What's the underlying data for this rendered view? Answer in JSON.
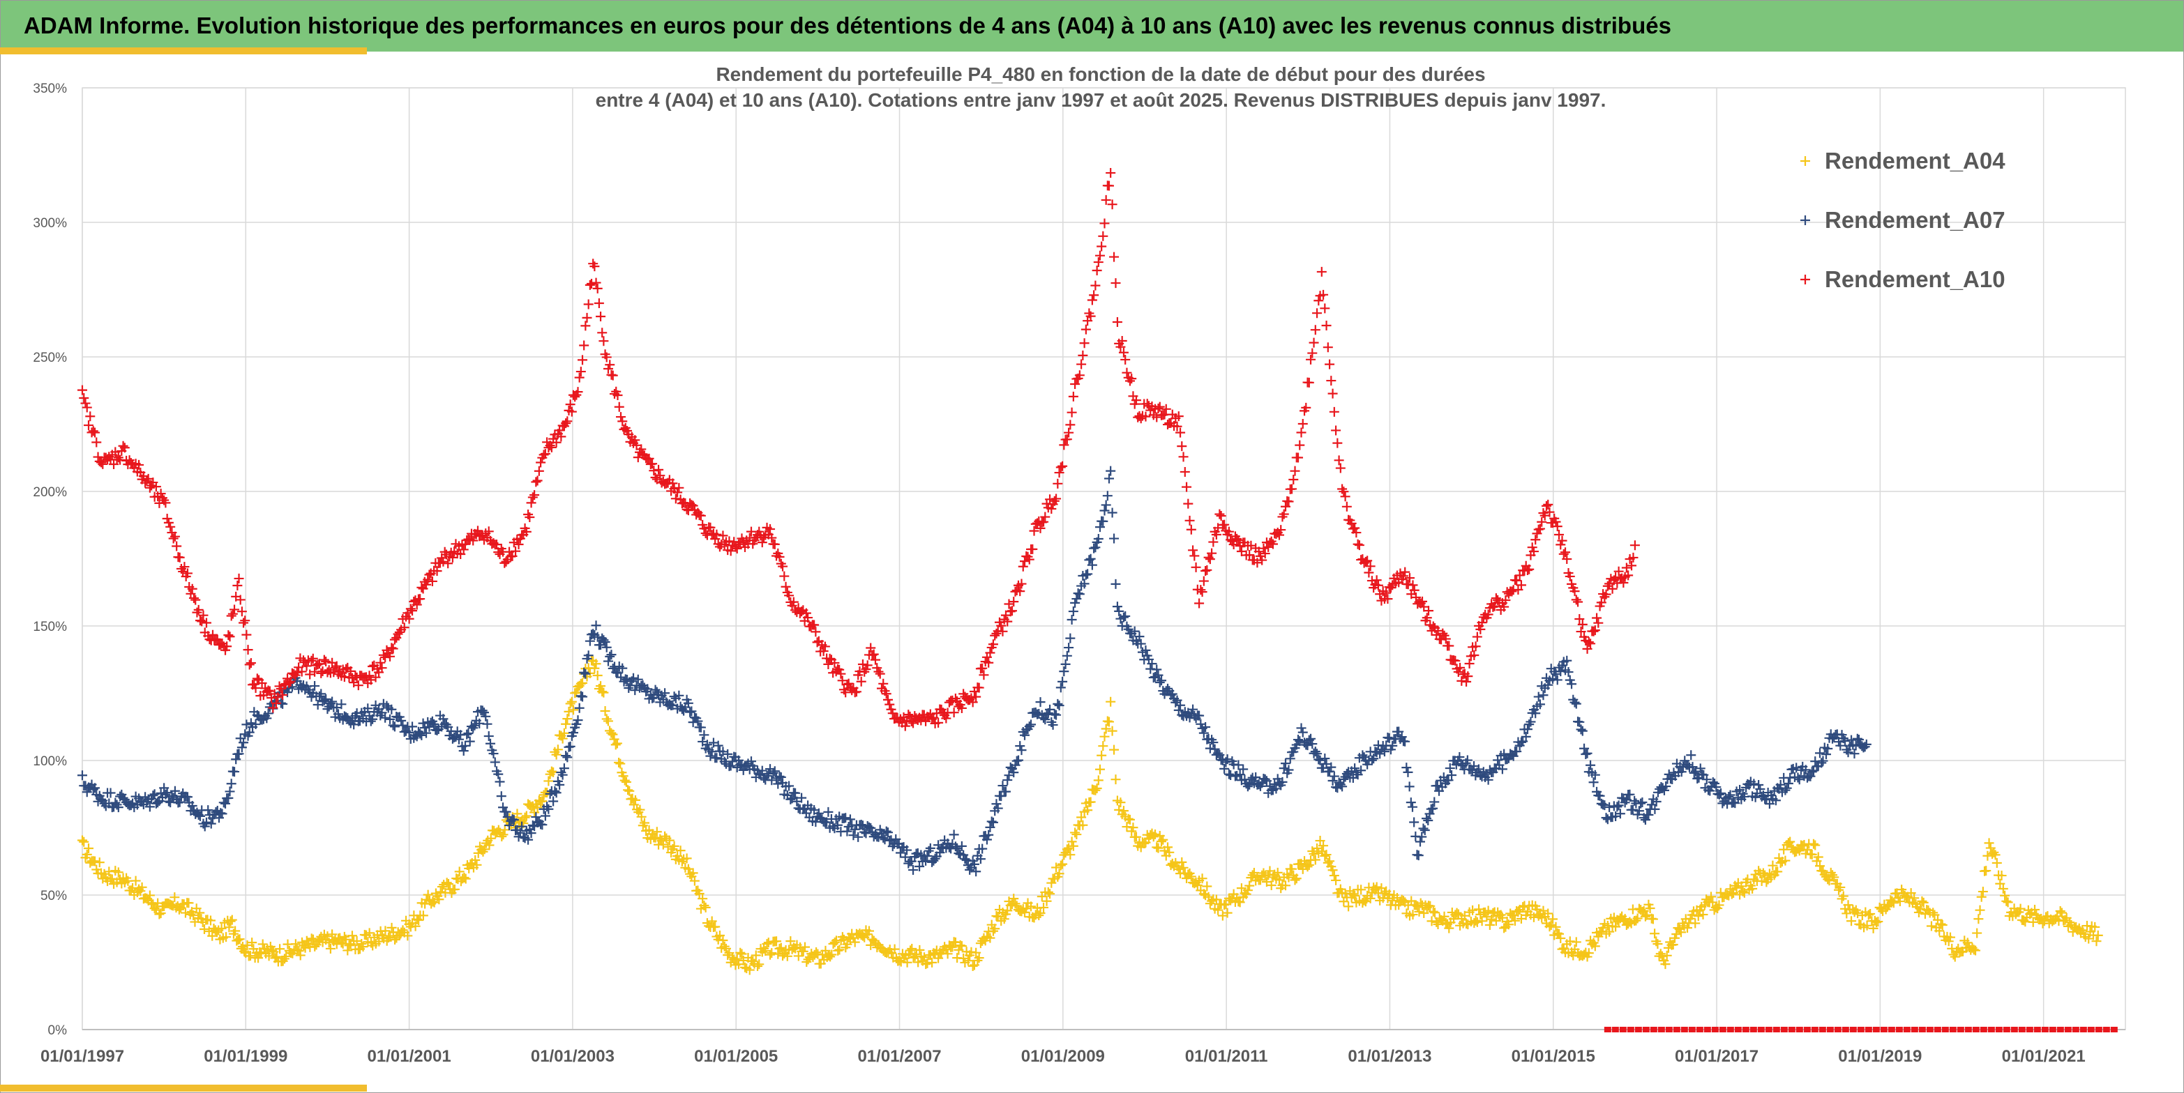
{
  "header": {
    "title": "ADAM Informe. Evolution historique des performances en euros pour des détentions de 4 ans (A04) à 10 ans (A10) avec les revenus connus distribués"
  },
  "colors": {
    "header_bg": "#7dc57b",
    "accent_bar": "#f1bd2e",
    "A04": "#f5c518",
    "A07": "#2e4a7d",
    "A10": "#e8161c"
  },
  "chart_data": {
    "type": "scatter",
    "marker": "plus",
    "title_line1": "Rendement du portefeuille P4_480 en fonction de la date de début pour des durées",
    "title_line2": "entre 4 (A04) et 10 ans (A10). Cotations entre janv 1997 et août 2025. Revenus DISTRIBUES depuis janv 1997.",
    "x_tick_labels": [
      "01/01/1997",
      "01/01/1999",
      "01/01/2001",
      "01/01/2003",
      "01/01/2005",
      "01/01/2007",
      "01/01/2009",
      "01/01/2011",
      "01/01/2013",
      "01/01/2015",
      "01/01/2017",
      "01/01/2019",
      "01/01/2021"
    ],
    "xlim": [
      "1997-01-01",
      "2021-12-31"
    ],
    "y_tick_labels": [
      "0%",
      "50%",
      "100%",
      "150%",
      "200%",
      "250%",
      "300%",
      "350%"
    ],
    "ylim": [
      0,
      3.5
    ],
    "grid": true,
    "legend_position": "top-right",
    "series": [
      {
        "name": "Rendement_A04",
        "color": "#f5c518",
        "points": [
          [
            "1997-01",
            0.68
          ],
          [
            "1997-04",
            0.58
          ],
          [
            "1997-07",
            0.56
          ],
          [
            "1997-10",
            0.5
          ],
          [
            "1998-01",
            0.44
          ],
          [
            "1998-03",
            0.47
          ],
          [
            "1998-06",
            0.42
          ],
          [
            "1998-09",
            0.35
          ],
          [
            "1998-11",
            0.39
          ],
          [
            "1999-01",
            0.3
          ],
          [
            "1999-06",
            0.28
          ],
          [
            "2000-01",
            0.33
          ],
          [
            "2000-06",
            0.32
          ],
          [
            "2001-01",
            0.38
          ],
          [
            "2001-04",
            0.48
          ],
          [
            "2001-07",
            0.53
          ],
          [
            "2001-10",
            0.6
          ],
          [
            "2002-01",
            0.72
          ],
          [
            "2002-06",
            0.8
          ],
          [
            "2002-09",
            0.88
          ],
          [
            "2002-12",
            1.15
          ],
          [
            "2003-02",
            1.26
          ],
          [
            "2003-04",
            1.38
          ],
          [
            "2003-06",
            1.18
          ],
          [
            "2003-08",
            1.0
          ],
          [
            "2003-10",
            0.85
          ],
          [
            "2003-12",
            0.73
          ],
          [
            "2004-03",
            0.7
          ],
          [
            "2004-06",
            0.6
          ],
          [
            "2004-09",
            0.4
          ],
          [
            "2004-12",
            0.28
          ],
          [
            "2005-03",
            0.24
          ],
          [
            "2005-06",
            0.3
          ],
          [
            "2005-09",
            0.3
          ],
          [
            "2006-01",
            0.26
          ],
          [
            "2006-06",
            0.34
          ],
          [
            "2006-09",
            0.34
          ],
          [
            "2007-01",
            0.28
          ],
          [
            "2007-06",
            0.27
          ],
          [
            "2007-09",
            0.3
          ],
          [
            "2007-12",
            0.26
          ],
          [
            "2008-03",
            0.4
          ],
          [
            "2008-06",
            0.48
          ],
          [
            "2008-09",
            0.42
          ],
          [
            "2008-12",
            0.58
          ],
          [
            "2009-03",
            0.72
          ],
          [
            "2009-06",
            0.92
          ],
          [
            "2009-08",
            1.2
          ],
          [
            "2009-09",
            0.85
          ],
          [
            "2009-12",
            0.7
          ],
          [
            "2010-03",
            0.7
          ],
          [
            "2010-06",
            0.6
          ],
          [
            "2010-09",
            0.55
          ],
          [
            "2010-12",
            0.44
          ],
          [
            "2011-03",
            0.5
          ],
          [
            "2011-06",
            0.58
          ],
          [
            "2011-09",
            0.55
          ],
          [
            "2011-12",
            0.6
          ],
          [
            "2012-03",
            0.68
          ],
          [
            "2012-06",
            0.48
          ],
          [
            "2012-09",
            0.5
          ],
          [
            "2012-12",
            0.5
          ],
          [
            "2013-03",
            0.45
          ],
          [
            "2013-06",
            0.45
          ],
          [
            "2013-09",
            0.4
          ],
          [
            "2013-12",
            0.42
          ],
          [
            "2014-03",
            0.42
          ],
          [
            "2014-06",
            0.4
          ],
          [
            "2014-09",
            0.45
          ],
          [
            "2014-12",
            0.42
          ],
          [
            "2015-03",
            0.3
          ],
          [
            "2015-06",
            0.3
          ],
          [
            "2015-09",
            0.38
          ],
          [
            "2015-12",
            0.42
          ],
          [
            "2016-03",
            0.45
          ],
          [
            "2016-05",
            0.25
          ],
          [
            "2016-08",
            0.38
          ],
          [
            "2016-11",
            0.45
          ],
          [
            "2017-03",
            0.5
          ],
          [
            "2017-06",
            0.55
          ],
          [
            "2017-09",
            0.58
          ],
          [
            "2017-12",
            0.68
          ],
          [
            "2018-03",
            0.68
          ],
          [
            "2018-06",
            0.55
          ],
          [
            "2018-09",
            0.42
          ],
          [
            "2018-12",
            0.4
          ],
          [
            "2019-03",
            0.5
          ],
          [
            "2019-06",
            0.48
          ],
          [
            "2019-09",
            0.4
          ],
          [
            "2019-12",
            0.3
          ],
          [
            "2020-03",
            0.32
          ],
          [
            "2020-05",
            0.7
          ],
          [
            "2020-08",
            0.45
          ],
          [
            "2020-11",
            0.42
          ],
          [
            "2021-03",
            0.42
          ],
          [
            "2021-06",
            0.38
          ],
          [
            "2021-09",
            0.35
          ]
        ]
      },
      {
        "name": "Rendement_A07",
        "color": "#2e4a7d",
        "points": [
          [
            "1997-01",
            0.92
          ],
          [
            "1997-04",
            0.86
          ],
          [
            "1997-07",
            0.85
          ],
          [
            "1997-10",
            0.84
          ],
          [
            "1998-01",
            0.88
          ],
          [
            "1998-04",
            0.85
          ],
          [
            "1998-07",
            0.78
          ],
          [
            "1998-10",
            0.82
          ],
          [
            "1998-12",
            1.05
          ],
          [
            "1999-02",
            1.15
          ],
          [
            "1999-05",
            1.2
          ],
          [
            "1999-09",
            1.3
          ],
          [
            "2000-01",
            1.2
          ],
          [
            "2000-06",
            1.15
          ],
          [
            "2000-09",
            1.2
          ],
          [
            "2001-01",
            1.1
          ],
          [
            "2001-06",
            1.15
          ],
          [
            "2001-09",
            1.05
          ],
          [
            "2001-12",
            1.2
          ],
          [
            "2002-03",
            0.8
          ],
          [
            "2002-06",
            0.72
          ],
          [
            "2002-09",
            0.8
          ],
          [
            "2002-12",
            1.0
          ],
          [
            "2003-02",
            1.2
          ],
          [
            "2003-04",
            1.5
          ],
          [
            "2003-06",
            1.4
          ],
          [
            "2003-09",
            1.3
          ],
          [
            "2003-12",
            1.25
          ],
          [
            "2004-06",
            1.2
          ],
          [
            "2004-09",
            1.05
          ],
          [
            "2004-12",
            1.0
          ],
          [
            "2005-06",
            0.95
          ],
          [
            "2005-12",
            0.8
          ],
          [
            "2006-06",
            0.75
          ],
          [
            "2006-12",
            0.7
          ],
          [
            "2007-03",
            0.62
          ],
          [
            "2007-06",
            0.65
          ],
          [
            "2007-09",
            0.7
          ],
          [
            "2007-12",
            0.6
          ],
          [
            "2008-03",
            0.8
          ],
          [
            "2008-06",
            1.0
          ],
          [
            "2008-09",
            1.2
          ],
          [
            "2008-12",
            1.15
          ],
          [
            "2009-03",
            1.6
          ],
          [
            "2009-06",
            1.8
          ],
          [
            "2009-08",
            2.05
          ],
          [
            "2009-09",
            1.55
          ],
          [
            "2009-12",
            1.45
          ],
          [
            "2010-03",
            1.3
          ],
          [
            "2010-06",
            1.2
          ],
          [
            "2010-09",
            1.15
          ],
          [
            "2010-12",
            1.0
          ],
          [
            "2011-03",
            0.95
          ],
          [
            "2011-06",
            0.9
          ],
          [
            "2011-09",
            0.92
          ],
          [
            "2011-12",
            1.1
          ],
          [
            "2012-03",
            1.0
          ],
          [
            "2012-06",
            0.9
          ],
          [
            "2012-09",
            1.0
          ],
          [
            "2012-12",
            1.05
          ],
          [
            "2013-03",
            1.1
          ],
          [
            "2013-05",
            0.65
          ],
          [
            "2013-08",
            0.9
          ],
          [
            "2013-11",
            1.0
          ],
          [
            "2014-03",
            0.95
          ],
          [
            "2014-06",
            1.0
          ],
          [
            "2014-09",
            1.1
          ],
          [
            "2014-12",
            1.3
          ],
          [
            "2015-03",
            1.35
          ],
          [
            "2015-06",
            1.0
          ],
          [
            "2015-09",
            0.8
          ],
          [
            "2015-12",
            0.85
          ],
          [
            "2016-03",
            0.8
          ],
          [
            "2016-06",
            0.95
          ],
          [
            "2016-09",
            1.0
          ],
          [
            "2016-12",
            0.9
          ],
          [
            "2017-03",
            0.85
          ],
          [
            "2017-06",
            0.9
          ],
          [
            "2017-09",
            0.85
          ],
          [
            "2017-12",
            0.95
          ],
          [
            "2018-03",
            0.95
          ],
          [
            "2018-06",
            1.08
          ],
          [
            "2018-09",
            1.05
          ],
          [
            "2018-11",
            1.06
          ]
        ]
      },
      {
        "name": "Rendement_A10",
        "color": "#e8161c",
        "points": [
          [
            "1997-01",
            2.35
          ],
          [
            "1997-04",
            2.1
          ],
          [
            "1997-07",
            2.15
          ],
          [
            "1997-10",
            2.05
          ],
          [
            "1998-01",
            1.95
          ],
          [
            "1998-04",
            1.7
          ],
          [
            "1998-07",
            1.5
          ],
          [
            "1998-10",
            1.4
          ],
          [
            "1998-12",
            1.65
          ],
          [
            "1999-02",
            1.3
          ],
          [
            "1999-05",
            1.22
          ],
          [
            "1999-09",
            1.35
          ],
          [
            "2000-01",
            1.35
          ],
          [
            "2000-06",
            1.3
          ],
          [
            "2000-09",
            1.35
          ],
          [
            "2001-01",
            1.55
          ],
          [
            "2001-06",
            1.75
          ],
          [
            "2001-09",
            1.8
          ],
          [
            "2001-12",
            1.85
          ],
          [
            "2002-03",
            1.75
          ],
          [
            "2002-06",
            1.85
          ],
          [
            "2002-09",
            2.15
          ],
          [
            "2002-12",
            2.25
          ],
          [
            "2003-02",
            2.4
          ],
          [
            "2003-04",
            2.85
          ],
          [
            "2003-06",
            2.5
          ],
          [
            "2003-09",
            2.2
          ],
          [
            "2003-12",
            2.1
          ],
          [
            "2004-06",
            1.95
          ],
          [
            "2004-09",
            1.85
          ],
          [
            "2004-12",
            1.8
          ],
          [
            "2005-06",
            1.85
          ],
          [
            "2005-09",
            1.6
          ],
          [
            "2005-12",
            1.5
          ],
          [
            "2006-03",
            1.35
          ],
          [
            "2006-06",
            1.25
          ],
          [
            "2006-09",
            1.4
          ],
          [
            "2006-12",
            1.15
          ],
          [
            "2007-06",
            1.15
          ],
          [
            "2007-12",
            1.25
          ],
          [
            "2008-03",
            1.45
          ],
          [
            "2008-06",
            1.6
          ],
          [
            "2008-09",
            1.85
          ],
          [
            "2008-12",
            2.0
          ],
          [
            "2009-03",
            2.4
          ],
          [
            "2009-06",
            2.8
          ],
          [
            "2009-08",
            3.2
          ],
          [
            "2009-09",
            2.6
          ],
          [
            "2009-12",
            2.3
          ],
          [
            "2010-03",
            2.3
          ],
          [
            "2010-06",
            2.25
          ],
          [
            "2010-09",
            1.6
          ],
          [
            "2010-12",
            1.9
          ],
          [
            "2011-03",
            1.8
          ],
          [
            "2011-06",
            1.75
          ],
          [
            "2011-09",
            1.85
          ],
          [
            "2011-12",
            2.2
          ],
          [
            "2012-03",
            2.8
          ],
          [
            "2012-06",
            2.0
          ],
          [
            "2012-09",
            1.75
          ],
          [
            "2012-12",
            1.6
          ],
          [
            "2013-03",
            1.7
          ],
          [
            "2013-06",
            1.55
          ],
          [
            "2013-09",
            1.45
          ],
          [
            "2013-12",
            1.3
          ],
          [
            "2014-03",
            1.55
          ],
          [
            "2014-06",
            1.6
          ],
          [
            "2014-09",
            1.7
          ],
          [
            "2014-12",
            1.95
          ],
          [
            "2015-03",
            1.75
          ],
          [
            "2015-06",
            1.4
          ],
          [
            "2015-09",
            1.65
          ],
          [
            "2015-12",
            1.7
          ],
          [
            "2016-01",
            1.8
          ]
        ]
      },
      {
        "name": "",
        "color": "#e8161c",
        "marker": "dash",
        "points": [
          [
            "2015-09",
            0.0
          ],
          [
            "2021-12",
            0.0
          ]
        ]
      }
    ]
  }
}
